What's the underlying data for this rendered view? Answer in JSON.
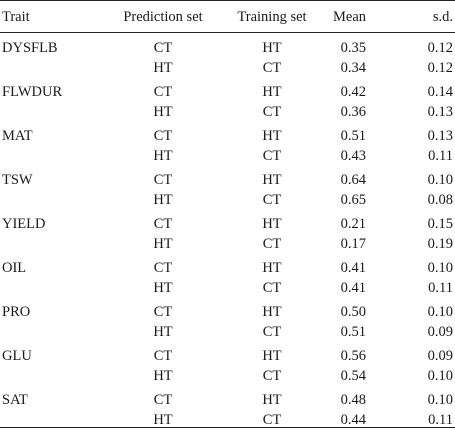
{
  "headers": {
    "trait": "Trait",
    "prediction": "Prediction set",
    "training": "Training set",
    "mean": "Mean",
    "sd": "s.d."
  },
  "groups": [
    {
      "trait": "DYSFLB",
      "rows": [
        {
          "pred": "CT",
          "train": "HT",
          "mean": "0.35",
          "sd": "0.12"
        },
        {
          "pred": "HT",
          "train": "CT",
          "mean": "0.34",
          "sd": "0.12"
        }
      ]
    },
    {
      "trait": "FLWDUR",
      "rows": [
        {
          "pred": "CT",
          "train": "HT",
          "mean": "0.42",
          "sd": "0.14"
        },
        {
          "pred": "HT",
          "train": "CT",
          "mean": "0.36",
          "sd": "0.13"
        }
      ]
    },
    {
      "trait": "MAT",
      "rows": [
        {
          "pred": "CT",
          "train": "HT",
          "mean": "0.51",
          "sd": "0.13"
        },
        {
          "pred": "HT",
          "train": "CT",
          "mean": "0.43",
          "sd": "0.11"
        }
      ]
    },
    {
      "trait": "TSW",
      "rows": [
        {
          "pred": "CT",
          "train": "HT",
          "mean": "0.64",
          "sd": "0.10"
        },
        {
          "pred": "HT",
          "train": "CT",
          "mean": "0.65",
          "sd": "0.08"
        }
      ]
    },
    {
      "trait": "YIELD",
      "rows": [
        {
          "pred": "CT",
          "train": "HT",
          "mean": "0.21",
          "sd": "0.15"
        },
        {
          "pred": "HT",
          "train": "CT",
          "mean": "0.17",
          "sd": "0.19"
        }
      ]
    },
    {
      "trait": "OIL",
      "rows": [
        {
          "pred": "CT",
          "train": "HT",
          "mean": "0.41",
          "sd": "0.10"
        },
        {
          "pred": "HT",
          "train": "CT",
          "mean": "0.41",
          "sd": "0.11"
        }
      ]
    },
    {
      "trait": "PRO",
      "rows": [
        {
          "pred": "CT",
          "train": "HT",
          "mean": "0.50",
          "sd": "0.10"
        },
        {
          "pred": "HT",
          "train": "CT",
          "mean": "0.51",
          "sd": "0.09"
        }
      ]
    },
    {
      "trait": "GLU",
      "rows": [
        {
          "pred": "CT",
          "train": "HT",
          "mean": "0.56",
          "sd": "0.09"
        },
        {
          "pred": "HT",
          "train": "CT",
          "mean": "0.54",
          "sd": "0.10"
        }
      ]
    },
    {
      "trait": "SAT",
      "rows": [
        {
          "pred": "CT",
          "train": "HT",
          "mean": "0.48",
          "sd": "0.10"
        },
        {
          "pred": "HT",
          "train": "CT",
          "mean": "0.44",
          "sd": "0.11"
        }
      ]
    }
  ]
}
